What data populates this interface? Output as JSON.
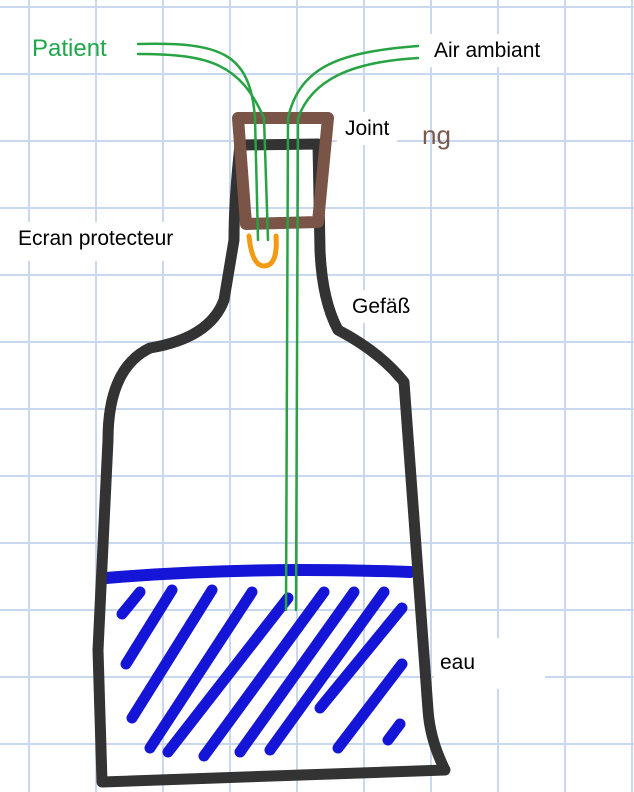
{
  "labels": {
    "patient": "Patient",
    "air": "Air ambiant",
    "joint": "Joint",
    "ng": "ng",
    "ecran": "Ecran protecteur",
    "gefass": "Gefäß",
    "eau": "eau"
  },
  "colors": {
    "patient_text": "#1fa84a",
    "ng_text": "#7a5a4e",
    "grid": "#c9d8ef",
    "vessel_outline": "#333333",
    "stopper": "#7a5547",
    "tube": "#27a343",
    "protective_screen": "#f29a12",
    "water": "#1515d8"
  }
}
